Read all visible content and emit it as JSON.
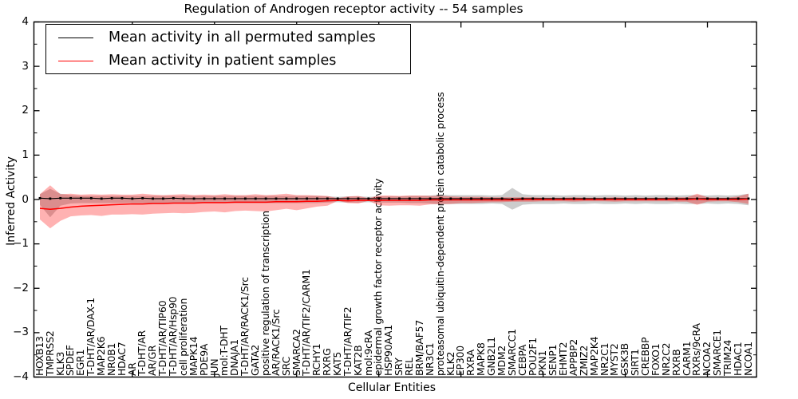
{
  "chart_data": {
    "type": "line",
    "title": "Regulation of Androgen receptor activity -- 54 samples",
    "xlabel": "Cellular Entities",
    "ylabel": "Inferred Activity",
    "ylim": [
      -4,
      4
    ],
    "yticks": [
      4,
      3,
      2,
      1,
      0,
      -1,
      -2,
      -3,
      -4
    ],
    "y_minor_step": 0.5,
    "x_major_tick_indices": [
      9,
      17,
      25,
      33,
      41,
      49,
      57,
      65
    ],
    "grid": "off",
    "legend": {
      "position": "upper left",
      "entries": [
        {
          "label": "Mean activity in all permuted samples",
          "color": "#000000"
        },
        {
          "label": "Mean activity in patient samples",
          "color": "#ff0000"
        }
      ]
    },
    "categories": [
      "HOXB13",
      "TMPRSS2",
      "KLK3",
      "SPDEF",
      "EGR1",
      "T-DHT/AR/DAX-1",
      "MAP2K6",
      "NR0B1",
      "HDAC7",
      "AR",
      "T-DHT/AR",
      "AR/GR",
      "T-DHT/AR/TIP60",
      "T-DHT/AR/Hsp90",
      "cell proliferation",
      "MAPK14",
      "PDE9A",
      "JUN",
      "mol:T-DHT",
      "DNAJA1",
      "T-DHT/AR/RACK1/Src",
      "GATA2",
      "positive regulation of transcription",
      "AR/RACK1/Src",
      "SRC",
      "SMARCA2",
      "T-DHT/AR/TIF2/CARM1",
      "RCHY1",
      "RXRG",
      "KAT5",
      "T-DHT/AR/TIF2",
      "KAT2B",
      "mol:9cRA",
      "epidermal growth factor receptor activity",
      "HSP90AA1",
      "SRY",
      "REL",
      "BRM/BAF57",
      "NR3C1",
      "proteasomal ubiquitin-dependent protein catabolic process",
      "KLK2",
      "EP300",
      "RXRA",
      "MAPK8",
      "GNB2L1",
      "MDM2",
      "SMARCC1",
      "CEBPA",
      "POU2F1",
      "PKN1",
      "SENP1",
      "EHMT2",
      "APPBP2",
      "ZMIZ2",
      "MAP2K4",
      "NR2C1",
      "MYST2",
      "GSK3B",
      "SIRT1",
      "CREBBP",
      "FOXO1",
      "NR2C2",
      "RXRB",
      "CARM1",
      "RXRs/9cRA",
      "NCOA2",
      "SMARCE1",
      "TRIM24",
      "HDAC1",
      "NCOA1"
    ],
    "series": [
      {
        "name": "Mean activity in all permuted samples",
        "color": "#000000",
        "width": 1.1,
        "marker": "square",
        "values": [
          0.03,
          0.02,
          0.03,
          0.03,
          0.03,
          0.03,
          0.02,
          0.03,
          0.03,
          0.02,
          0.03,
          0.02,
          0.02,
          0.03,
          0.02,
          0.02,
          0.02,
          0.02,
          0.02,
          0.02,
          0.02,
          0.02,
          0.02,
          0.02,
          0.02,
          0.02,
          0.02,
          0.02,
          0.02,
          0.02,
          0.02,
          0.02,
          0.02,
          0.02,
          0.02,
          0.02,
          0.02,
          0.02,
          0.02,
          0.02,
          0.02,
          0.02,
          0.02,
          0.02,
          0.02,
          0.02,
          0.01,
          0.02,
          0.02,
          0.02,
          0.02,
          0.02,
          0.02,
          0.02,
          0.02,
          0.02,
          0.02,
          0.02,
          0.02,
          0.02,
          0.02,
          0.02,
          0.02,
          0.02,
          0.02,
          0.02,
          0.02,
          0.02,
          0.02,
          0.02
        ]
      },
      {
        "name": "Mean activity in patient samples",
        "color": "#ff0000",
        "width": 1.5,
        "marker": "none",
        "values": [
          -0.2,
          -0.22,
          -0.2,
          -0.17,
          -0.15,
          -0.14,
          -0.13,
          -0.12,
          -0.11,
          -0.1,
          -0.1,
          -0.09,
          -0.09,
          -0.08,
          -0.08,
          -0.08,
          -0.07,
          -0.07,
          -0.07,
          -0.06,
          -0.06,
          -0.06,
          -0.06,
          -0.05,
          -0.05,
          -0.05,
          -0.04,
          -0.04,
          -0.03,
          -0.02,
          -0.03,
          -0.02,
          -0.02,
          -0.02,
          -0.02,
          -0.02,
          -0.02,
          -0.02,
          -0.01,
          -0.01,
          -0.01,
          -0.01,
          -0.01,
          -0.01,
          -0.01,
          -0.01,
          -0.01,
          0.0,
          0.0,
          0.0,
          0.0,
          0.0,
          0.0,
          0.0,
          0.0,
          0.0,
          0.0,
          0.0,
          0.0,
          0.0,
          0.0,
          0.0,
          0.0,
          0.0,
          0.01,
          0.0,
          0.0,
          0.0,
          0.0,
          0.01
        ]
      }
    ],
    "bands": [
      {
        "name": "permuted samples range",
        "color": "#808080",
        "opacity": 0.4,
        "upper": [
          0.12,
          0.24,
          0.13,
          0.1,
          0.08,
          0.08,
          0.08,
          0.08,
          0.08,
          0.08,
          0.08,
          0.08,
          0.08,
          0.08,
          0.08,
          0.08,
          0.08,
          0.08,
          0.08,
          0.08,
          0.08,
          0.08,
          0.08,
          0.08,
          0.08,
          0.08,
          0.08,
          0.08,
          0.07,
          0.06,
          0.07,
          0.07,
          0.06,
          0.07,
          0.07,
          0.07,
          0.08,
          0.08,
          0.09,
          0.11,
          0.1,
          0.1,
          0.1,
          0.1,
          0.09,
          0.1,
          0.26,
          0.12,
          0.1,
          0.1,
          0.1,
          0.09,
          0.1,
          0.1,
          0.09,
          0.1,
          0.1,
          0.09,
          0.1,
          0.09,
          0.1,
          0.1,
          0.09,
          0.1,
          0.1,
          0.09,
          0.1,
          0.09,
          0.1,
          0.13
        ],
        "lower": [
          -0.12,
          -0.4,
          -0.14,
          -0.09,
          -0.08,
          -0.08,
          -0.08,
          -0.08,
          -0.08,
          -0.08,
          -0.08,
          -0.08,
          -0.08,
          -0.08,
          -0.08,
          -0.08,
          -0.08,
          -0.08,
          -0.08,
          -0.08,
          -0.08,
          -0.08,
          -0.08,
          -0.08,
          -0.08,
          -0.08,
          -0.08,
          -0.08,
          -0.07,
          -0.06,
          -0.07,
          -0.07,
          -0.06,
          -0.07,
          -0.07,
          -0.07,
          -0.08,
          -0.08,
          -0.09,
          -0.11,
          -0.1,
          -0.1,
          -0.1,
          -0.1,
          -0.09,
          -0.1,
          -0.23,
          -0.12,
          -0.1,
          -0.1,
          -0.1,
          -0.09,
          -0.1,
          -0.1,
          -0.09,
          -0.1,
          -0.1,
          -0.09,
          -0.1,
          -0.09,
          -0.1,
          -0.1,
          -0.09,
          -0.1,
          -0.1,
          -0.09,
          -0.1,
          -0.09,
          -0.1,
          -0.13
        ]
      },
      {
        "name": "patient samples range",
        "color": "#ff0000",
        "opacity": 0.3,
        "upper": [
          0.12,
          0.32,
          0.12,
          0.13,
          0.11,
          0.12,
          0.11,
          0.12,
          0.11,
          0.11,
          0.13,
          0.11,
          0.1,
          0.11,
          0.12,
          0.1,
          0.11,
          0.1,
          0.12,
          0.1,
          0.1,
          0.12,
          0.1,
          0.11,
          0.13,
          0.1,
          0.1,
          0.09,
          0.08,
          0.03,
          0.07,
          0.08,
          0.03,
          0.09,
          0.09,
          0.08,
          0.09,
          0.09,
          0.08,
          0.08,
          0.07,
          0.06,
          0.06,
          0.06,
          0.05,
          0.05,
          0.05,
          0.05,
          0.05,
          0.04,
          0.04,
          0.04,
          0.05,
          0.04,
          0.04,
          0.04,
          0.05,
          0.04,
          0.04,
          0.04,
          0.04,
          0.04,
          0.05,
          0.05,
          0.13,
          0.05,
          0.04,
          0.04,
          0.07,
          0.13
        ],
        "lower": [
          -0.45,
          -0.65,
          -0.48,
          -0.38,
          -0.36,
          -0.35,
          -0.37,
          -0.34,
          -0.34,
          -0.33,
          -0.34,
          -0.32,
          -0.31,
          -0.3,
          -0.31,
          -0.3,
          -0.28,
          -0.27,
          -0.29,
          -0.26,
          -0.25,
          -0.26,
          -0.27,
          -0.24,
          -0.21,
          -0.24,
          -0.2,
          -0.16,
          -0.14,
          -0.03,
          -0.08,
          -0.09,
          -0.03,
          -0.13,
          -0.14,
          -0.13,
          -0.13,
          -0.14,
          -0.11,
          -0.1,
          -0.1,
          -0.08,
          -0.08,
          -0.07,
          -0.06,
          -0.06,
          -0.05,
          -0.05,
          -0.05,
          -0.04,
          -0.04,
          -0.04,
          -0.05,
          -0.04,
          -0.04,
          -0.04,
          -0.05,
          -0.04,
          -0.04,
          -0.04,
          -0.04,
          -0.04,
          -0.05,
          -0.05,
          -0.12,
          -0.05,
          -0.04,
          -0.04,
          -0.06,
          -0.1
        ]
      }
    ]
  }
}
